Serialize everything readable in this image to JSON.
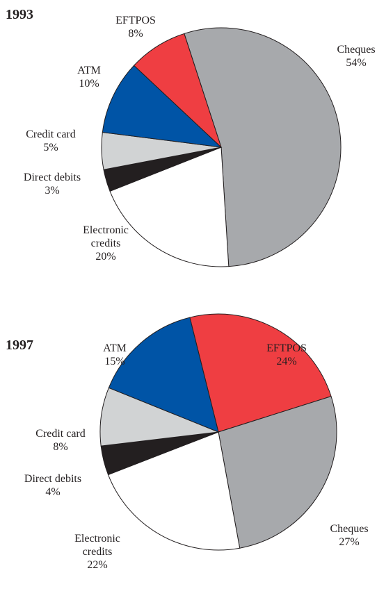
{
  "chart_data": [
    {
      "type": "pie",
      "title": "1993",
      "categories": [
        "Cheques",
        "Electronic credits",
        "Direct debits",
        "Credit card",
        "ATM",
        "EFTPOS"
      ],
      "values": [
        54,
        20,
        3,
        5,
        10,
        8
      ],
      "value_labels": [
        "54%",
        "20%",
        "3%",
        "5%",
        "10%",
        "8%"
      ],
      "colors": [
        "#a7a9ac",
        "#ffffff",
        "#231f20",
        "#d1d3d4",
        "#0054a6",
        "#ef3e42"
      ]
    },
    {
      "type": "pie",
      "title": "1997",
      "categories": [
        "EFTPOS",
        "Cheques",
        "Electronic credits",
        "Direct debits",
        "Credit card",
        "ATM"
      ],
      "values": [
        24,
        27,
        22,
        4,
        8,
        15
      ],
      "value_labels": [
        "24%",
        "27%",
        "22%",
        "4%",
        "8%",
        "15%"
      ],
      "colors": [
        "#ef3e42",
        "#a7a9ac",
        "#ffffff",
        "#231f20",
        "#d1d3d4",
        "#0054a6"
      ]
    }
  ]
}
